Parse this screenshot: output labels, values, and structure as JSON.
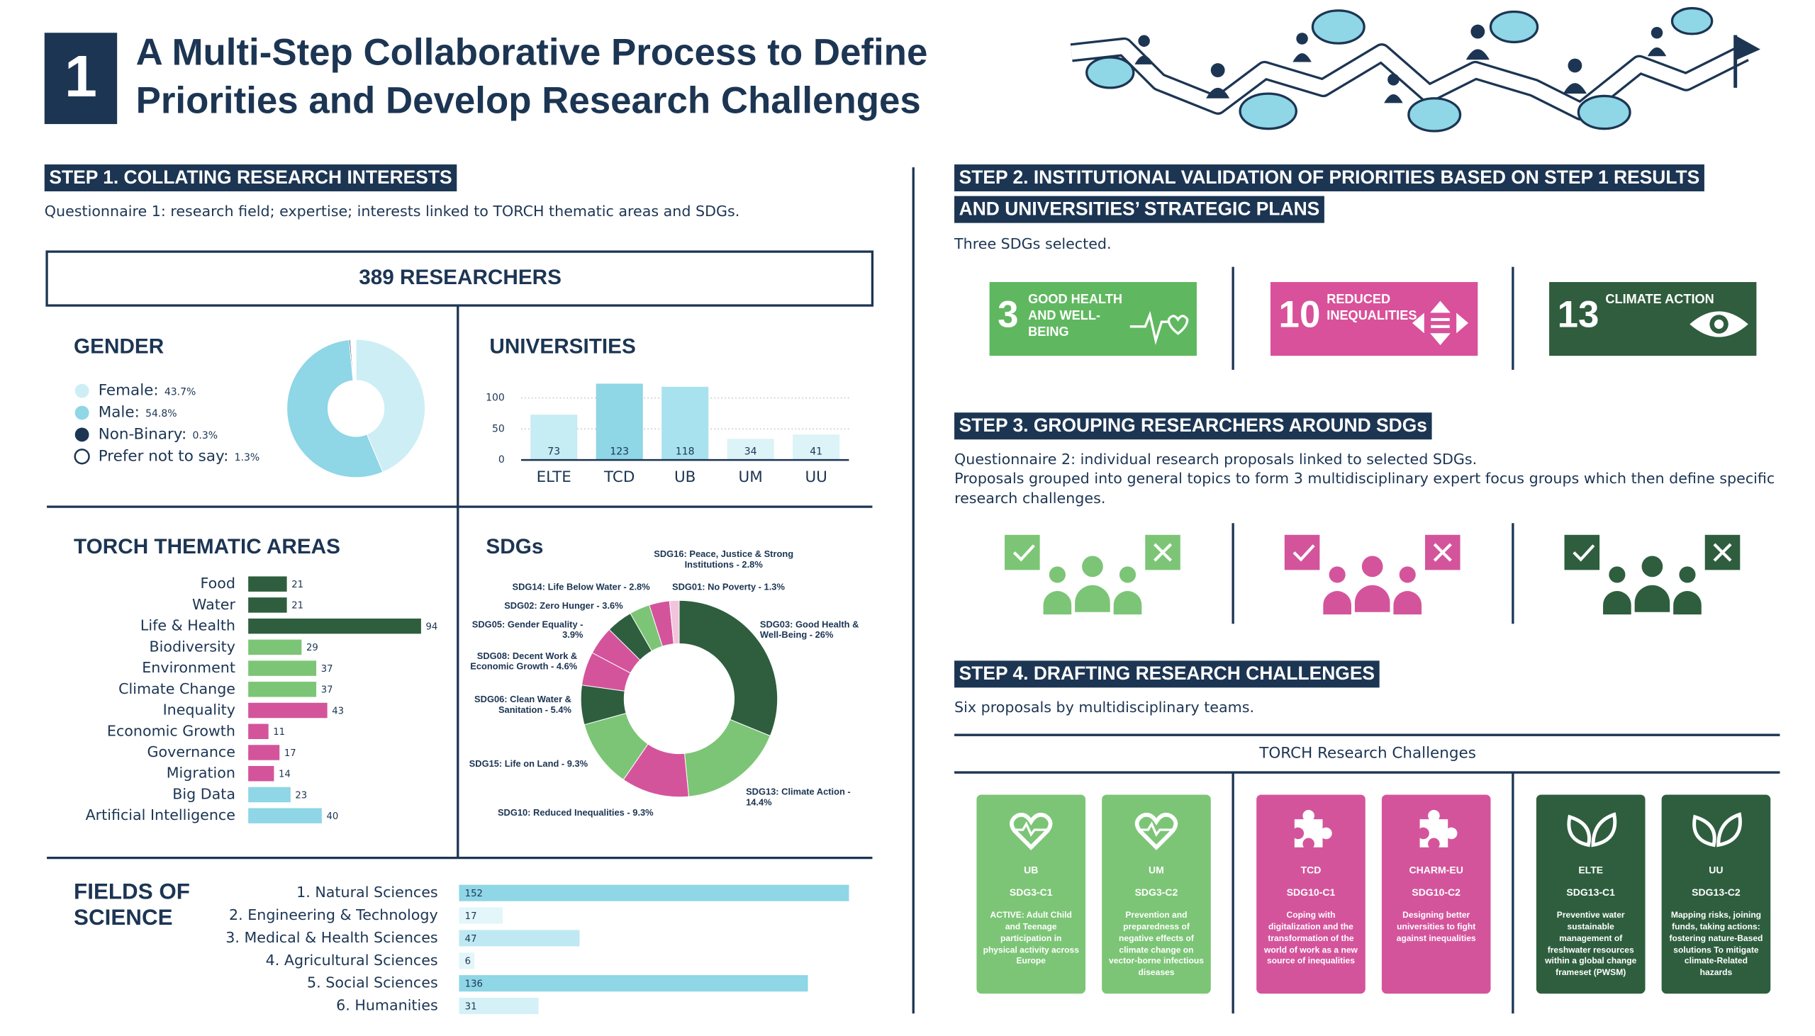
{
  "header": {
    "number": "1",
    "title": [
      "A Multi-Step Collaborative Process to Define",
      "Priorities and Develop Research Challenges"
    ]
  },
  "step1": {
    "heading": "STEP 1. COLLATING RESEARCH INTERESTS",
    "description": "Questionnaire 1: research field; expertise; interests linked to TORCH thematic areas and SDGs.",
    "total": "389 RESEARCHERS"
  },
  "chart_data": [
    {
      "type": "pie",
      "title": "GENDER",
      "categories": [
        "Female:",
        "Male:",
        "Non-Binary:",
        "Prefer not to say:"
      ],
      "values": [
        43.7,
        54.8,
        0.3,
        1.3
      ],
      "value_labels": [
        "43.7%",
        "54.8%",
        "0.3%",
        "1.3%"
      ],
      "colors": [
        "#cdeef5",
        "#8fd6e6",
        "#1c3553",
        "#ffffff"
      ]
    },
    {
      "type": "bar",
      "title": "UNIVERSITIES",
      "categories": [
        "ELTE",
        "TCD",
        "UB",
        "UM",
        "UU"
      ],
      "values": [
        73,
        123,
        118,
        34,
        41
      ],
      "colors": [
        "#c6ecf4",
        "#8fd6e6",
        "#a9e2ef",
        "#dcf3f8",
        "#dcf3f8"
      ],
      "ylim": [
        0,
        125
      ],
      "yticks": [
        0,
        50,
        100
      ],
      "grid": true
    },
    {
      "type": "hbar",
      "title": "TORCH THEMATIC AREAS",
      "categories": [
        "Food",
        "Water",
        "Life & Health",
        "Biodiversity",
        "Environment",
        "Climate Change",
        "Inequality",
        "Economic Growth",
        "Governance",
        "Migration",
        "Big Data",
        "Artificial Intelligence"
      ],
      "values": [
        21,
        21,
        94,
        29,
        37,
        37,
        43,
        11,
        17,
        14,
        23,
        40
      ],
      "colors": [
        "#2e5e3e",
        "#2e5e3e",
        "#2e5e3e",
        "#7cc576",
        "#7cc576",
        "#7cc576",
        "#d4549c",
        "#d4549c",
        "#d4549c",
        "#d4549c",
        "#8fd6e6",
        "#8fd6e6"
      ],
      "xlim": [
        0,
        100
      ]
    },
    {
      "type": "pie",
      "title": "SDGs",
      "categories": [
        "SDG03: Good Health & Well-Being - 26%",
        "SDG13: Climate Action - 14.4%",
        "SDG10: Reduced Inequalities - 9.3%",
        "SDG15: Life on Land - 9.3%",
        "SDG06: Clean Water & Sanitation - 5.4%",
        "SDG08: Decent Work & Economic Growth - 4.6%",
        "SDG05: Gender Equality - 3.9%",
        "SDG02: Zero Hunger - 3.6%",
        "SDG14: Life Below Water - 2.8%",
        "SDG16: Peace, Justice & Strong Institutions - 2.8%",
        "SDG01: No Poverty - 1.3%"
      ],
      "values": [
        26,
        14.4,
        9.3,
        9.3,
        5.4,
        4.6,
        3.9,
        3.6,
        2.8,
        2.8,
        1.3
      ],
      "colors": [
        "#2e5e3e",
        "#7cc576",
        "#d4549c",
        "#7cc576",
        "#2e5e3e",
        "#d4549c",
        "#d4549c",
        "#2e5e3e",
        "#7cc576",
        "#d4549c",
        "#f2c4dc"
      ]
    },
    {
      "type": "hbar",
      "title": "FIELDS OF SCIENCE",
      "categories": [
        "1. Natural Sciences",
        "2. Engineering & Technology",
        "3. Medical & Health Sciences",
        "4. Agricultural Sciences",
        "5. Social Sciences",
        "6. Humanities"
      ],
      "values": [
        152,
        17,
        47,
        6,
        136,
        31
      ],
      "colors": [
        "#8fd6e6",
        "#e3f6fa",
        "#bfe9f2",
        "#e3f6fa",
        "#8fd6e6",
        "#d5f1f7"
      ],
      "xlim": [
        0,
        155
      ]
    }
  ],
  "step2": {
    "heading": [
      "STEP 2. INSTITUTIONAL VALIDATION OF PRIORITIES BASED ON STEP 1 RESULTS",
      "AND UNIVERSITIES’ STRATEGIC PLANS"
    ],
    "description": "Three SDGs selected.",
    "sdgs": [
      {
        "number": "3",
        "name": "GOOD HEALTH AND WELL-BEING"
      },
      {
        "number": "10",
        "name": "REDUCED INEQUALITIES"
      },
      {
        "number": "13",
        "name": "CLIMATE ACTION"
      }
    ]
  },
  "step3": {
    "heading": "STEP 3. GROUPING RESEARCHERS AROUND SDGs",
    "description": [
      "Questionnaire 2: individual research proposals linked to selected SDGs.",
      "Proposals grouped into general topics to form 3 multidisciplinary expert focus groups which then define specific research challenges."
    ]
  },
  "step4": {
    "heading": "STEP 4. DRAFTING RESEARCH CHALLENGES",
    "description": "Six proposals by multidisciplinary teams.",
    "table_title": "TORCH Research Challenges",
    "cards": [
      {
        "institution": "UB",
        "code": "SDG3-C1",
        "text": "ACTIVE: Adult Child and Teenage participation in physical activity across Europe"
      },
      {
        "institution": "UM",
        "code": "SDG3-C2",
        "text": "Prevention and preparedness of negative effects of climate change on vector-borne infectious diseases"
      },
      {
        "institution": "TCD",
        "code": "SDG10-C1",
        "text": "Coping with digitalization and the transformation of the world of work as a new source of inequalities"
      },
      {
        "institution": "CHARM-EU",
        "code": "SDG10-C2",
        "text": "Designing better universities to fight against inequalities"
      },
      {
        "institution": "ELTE",
        "code": "SDG13-C1",
        "text": "Preventive water sustainable management of freshwater resources within a global change frameset (PWSM)"
      },
      {
        "institution": "UU",
        "code": "SDG13-C2",
        "text": "Mapping risks, joining funds, taking actions: fostering nature-Based solutions To mitigate climate-Related hazards"
      }
    ]
  }
}
